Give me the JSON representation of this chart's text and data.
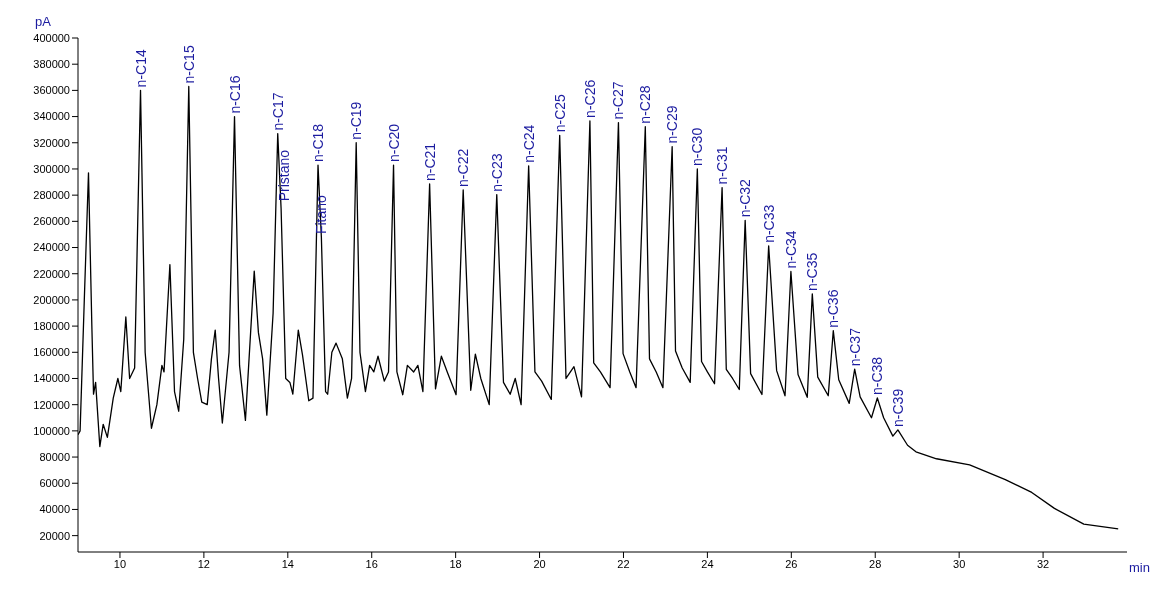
{
  "chart_data": {
    "type": "line",
    "xlabel": "min",
    "ylabel": "pA",
    "xlim": [
      9,
      34
    ],
    "xticks": [
      10,
      12,
      14,
      16,
      18,
      20,
      22,
      24,
      26,
      28,
      30,
      32
    ],
    "ylim": [
      7500,
      400000
    ],
    "yticks": [
      20000,
      40000,
      60000,
      80000,
      100000,
      120000,
      140000,
      160000,
      180000,
      200000,
      220000,
      240000,
      260000,
      280000,
      300000,
      320000,
      340000,
      360000,
      380000,
      400000
    ],
    "grid": false,
    "x": [
      9.0,
      9.05,
      9.15,
      9.25,
      9.33,
      9.37,
      9.42,
      9.52,
      9.6,
      9.7,
      9.84,
      9.95,
      10.02,
      10.14,
      10.23,
      10.35,
      10.49,
      10.6,
      10.75,
      10.88,
      11.0,
      11.05,
      11.19,
      11.3,
      11.4,
      11.52,
      11.64,
      11.75,
      11.85,
      11.95,
      12.08,
      12.18,
      12.27,
      12.35,
      12.44,
      12.6,
      12.73,
      12.85,
      12.99,
      13.2,
      13.3,
      13.4,
      13.5,
      13.65,
      13.76,
      13.84,
      13.95,
      14.05,
      14.12,
      14.25,
      14.35,
      14.5,
      14.6,
      14.72,
      14.8,
      14.9,
      14.95,
      15.05,
      15.15,
      15.3,
      15.42,
      15.52,
      15.63,
      15.72,
      15.85,
      15.95,
      16.05,
      16.15,
      16.3,
      16.4,
      16.52,
      16.6,
      16.74,
      16.85,
      17.0,
      17.1,
      17.22,
      17.38,
      17.52,
      17.66,
      17.8,
      18.01,
      18.18,
      18.36,
      18.47,
      18.6,
      18.8,
      18.98,
      19.14,
      19.3,
      19.42,
      19.56,
      19.74,
      19.89,
      20.05,
      20.28,
      20.48,
      20.63,
      20.82,
      21.0,
      21.2,
      21.29,
      21.45,
      21.68,
      21.88,
      21.99,
      22.15,
      22.3,
      22.52,
      22.62,
      22.78,
      22.94,
      23.16,
      23.24,
      23.4,
      23.59,
      23.76,
      23.86,
      24.0,
      24.17,
      24.35,
      24.45,
      24.6,
      24.76,
      24.9,
      25.03,
      25.3,
      25.46,
      25.65,
      25.85,
      25.99,
      26.16,
      26.38,
      26.5,
      26.63,
      26.88,
      27.0,
      27.13,
      27.38,
      27.51,
      27.64,
      27.91,
      28.05,
      28.2,
      28.42,
      28.54,
      28.77,
      28.97,
      29.46,
      30.25,
      31.1,
      31.73,
      32.27,
      32.97,
      33.79
    ],
    "values": [
      97000,
      100000,
      200000,
      297000,
      180000,
      128000,
      137000,
      88000,
      105000,
      95000,
      125000,
      140000,
      130000,
      187000,
      140000,
      148000,
      360000,
      160000,
      102000,
      120000,
      150000,
      145000,
      227000,
      130000,
      115000,
      170000,
      363000,
      160000,
      140000,
      122000,
      120000,
      155000,
      177000,
      140000,
      106000,
      160000,
      340000,
      150000,
      108000,
      222000,
      175000,
      155000,
      112000,
      190000,
      327000,
      270000,
      140000,
      137000,
      128000,
      177000,
      158000,
      123000,
      125000,
      303000,
      248000,
      130000,
      128000,
      160000,
      167000,
      155000,
      125000,
      140000,
      320000,
      160000,
      130000,
      150000,
      145000,
      157000,
      138000,
      145000,
      303000,
      145000,
      127600,
      150000,
      145000,
      150000,
      130000,
      288500,
      132000,
      157000,
      145000,
      127600,
      284000,
      131000,
      158600,
      140000,
      120000,
      280400,
      137000,
      128000,
      140000,
      120000,
      302400,
      145000,
      138000,
      124000,
      325700,
      140000,
      149000,
      126000,
      336700,
      152000,
      145000,
      133000,
      335400,
      159000,
      145000,
      133000,
      332300,
      155000,
      145000,
      133000,
      317100,
      161000,
      148000,
      137000,
      300000,
      153000,
      145000,
      136000,
      285800,
      147000,
      140000,
      131600,
      260800,
      143700,
      127800,
      241300,
      146000,
      126800,
      221700,
      143000,
      125600,
      204600,
      141000,
      126800,
      176500,
      139000,
      121000,
      147100,
      126000,
      110000,
      125100,
      110000,
      96000,
      100700,
      89000,
      84000,
      78700,
      74000,
      62800,
      53000,
      40800,
      28800,
      25100
    ],
    "color": "#000000",
    "annotations": [
      {
        "text": "n-C14",
        "x": 10.49,
        "y": 360000
      },
      {
        "text": "n-C15",
        "x": 11.64,
        "y": 363000
      },
      {
        "text": "n-C16",
        "x": 12.73,
        "y": 340000
      },
      {
        "text": "n-C17",
        "x": 13.76,
        "y": 327000
      },
      {
        "text": "Pristano",
        "x": 13.92,
        "y": 273000
      },
      {
        "text": "n-C18",
        "x": 14.72,
        "y": 303000
      },
      {
        "text": "Fitano",
        "x": 14.8,
        "y": 248000
      },
      {
        "text": "n-C19",
        "x": 15.63,
        "y": 320000
      },
      {
        "text": "n-C20",
        "x": 16.52,
        "y": 303000
      },
      {
        "text": "n-C21",
        "x": 17.38,
        "y": 288500
      },
      {
        "text": "n-C22",
        "x": 18.18,
        "y": 284000
      },
      {
        "text": "n-C23",
        "x": 18.98,
        "y": 280400
      },
      {
        "text": "n-C24",
        "x": 19.74,
        "y": 302400
      },
      {
        "text": "n-C25",
        "x": 20.48,
        "y": 325700
      },
      {
        "text": "n-C26",
        "x": 21.2,
        "y": 336700
      },
      {
        "text": "n-C27",
        "x": 21.88,
        "y": 335400
      },
      {
        "text": "n-C28",
        "x": 22.52,
        "y": 332300
      },
      {
        "text": "n-C29",
        "x": 23.16,
        "y": 317100
      },
      {
        "text": "n-C30",
        "x": 23.76,
        "y": 300000
      },
      {
        "text": "n-C31",
        "x": 24.35,
        "y": 285800
      },
      {
        "text": "n-C32",
        "x": 24.9,
        "y": 260800
      },
      {
        "text": "n-C33",
        "x": 25.46,
        "y": 241300
      },
      {
        "text": "n-C34",
        "x": 25.99,
        "y": 221700
      },
      {
        "text": "n-C35",
        "x": 26.5,
        "y": 204600
      },
      {
        "text": "n-C36",
        "x": 27.0,
        "y": 176500
      },
      {
        "text": "n-C37",
        "x": 27.51,
        "y": 147100
      },
      {
        "text": "n-C38",
        "x": 28.05,
        "y": 125100
      },
      {
        "text": "n-C39",
        "x": 28.54,
        "y": 100700
      }
    ]
  }
}
